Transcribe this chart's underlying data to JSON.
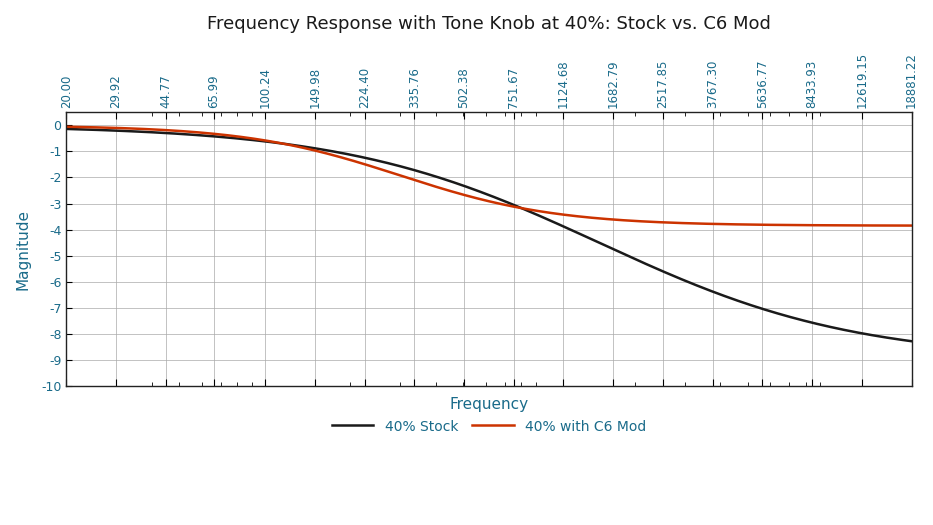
{
  "title": "Frequency Response with Tone Knob at 40%: Stock vs. C6 Mod",
  "xlabel": "Frequency",
  "ylabel": "Magnitude",
  "title_color": "#1a1a1a",
  "label_color": "#1a6b8a",
  "background_color": "#ffffff",
  "grid_color": "#aaaaaa",
  "ylim": [
    -10,
    0.5
  ],
  "yticks": [
    0,
    -1,
    -2,
    -3,
    -4,
    -5,
    -6,
    -7,
    -8,
    -9,
    -10
  ],
  "x_tick_freqs": [
    20.0,
    29.92,
    44.77,
    65.99,
    100.24,
    149.98,
    224.4,
    335.76,
    502.38,
    751.67,
    1124.68,
    1682.79,
    2517.85,
    3767.3,
    5636.77,
    8433.93,
    12619.15,
    18881.22
  ],
  "x_tick_labels": [
    "20.00",
    "29.92",
    "44.77",
    "65.99",
    "100.24",
    "149.98",
    "224.40",
    "335.76",
    "502.38",
    "751.67",
    "1124.68",
    "1682.79",
    "2517.85",
    "3767.30",
    "5636.77",
    "8433.93",
    "12619.15",
    "18881.22"
  ],
  "line1_label": "40% Stock",
  "line1_color": "#1a1a1a",
  "line2_label": "40% with C6 Mod",
  "line2_color": "#cc3300"
}
